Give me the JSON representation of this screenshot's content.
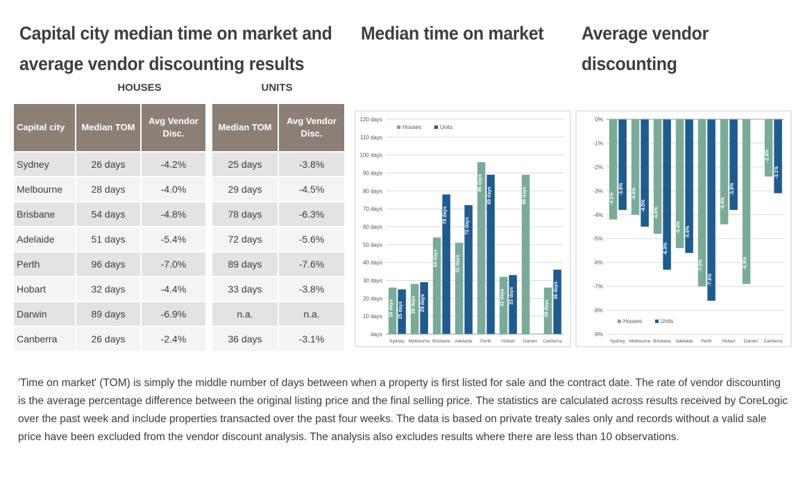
{
  "titles": {
    "main": "Capital city median time on market and average vendor discounting results",
    "tom": "Median time on market",
    "disc": "Average vendor discounting"
  },
  "table": {
    "houses_label": "HOUSES",
    "units_label": "UNITS",
    "headers": {
      "city": "Capital city",
      "houses_tom": "Median TOM",
      "houses_disc": "Avg Vendor Disc.",
      "units_tom": "Median TOM",
      "units_disc": "Avg Vendor Disc."
    },
    "rows": [
      {
        "city": "Sydney",
        "h_tom": "26 days",
        "h_disc": "-4.2%",
        "u_tom": "25 days",
        "u_disc": "-3.8%"
      },
      {
        "city": "Melbourne",
        "h_tom": "28 days",
        "h_disc": "-4.0%",
        "u_tom": "29 days",
        "u_disc": "-4.5%"
      },
      {
        "city": "Brisbane",
        "h_tom": "54 days",
        "h_disc": "-4.8%",
        "u_tom": "78 days",
        "u_disc": "-6.3%"
      },
      {
        "city": "Adelaide",
        "h_tom": "51 days",
        "h_disc": "-5.4%",
        "u_tom": "72 days",
        "u_disc": "-5.6%"
      },
      {
        "city": "Perth",
        "h_tom": "96 days",
        "h_disc": "-7.0%",
        "u_tom": "89 days",
        "u_disc": "-7.6%"
      },
      {
        "city": "Hobart",
        "h_tom": "32 days",
        "h_disc": "-4.4%",
        "u_tom": "33 days",
        "u_disc": "-3.8%"
      },
      {
        "city": "Darwin",
        "h_tom": "89 days",
        "h_disc": "-6.9%",
        "u_tom": "n.a.",
        "u_disc": "n.a."
      },
      {
        "city": "Canberra",
        "h_tom": "26 days",
        "h_disc": "-2.4%",
        "u_tom": "36 days",
        "u_disc": "-3.1%"
      }
    ]
  },
  "colors": {
    "houses": "#7aab98",
    "units": "#1f5b8e",
    "header": "#8c7f76"
  },
  "chart_data": [
    {
      "type": "bar",
      "title": "Median time on market",
      "categories": [
        "Sydney",
        "Melbourne",
        "Brisbane",
        "Adelaide",
        "Perth",
        "Hobart",
        "Darwin",
        "Canberra"
      ],
      "series": [
        {
          "name": "Houses",
          "values": [
            26,
            28,
            54,
            51,
            96,
            32,
            89,
            26
          ],
          "labels": [
            "26 days",
            "28 days",
            "54 days",
            "51 days",
            "96 days",
            "32 days",
            "89 days",
            "26 days"
          ]
        },
        {
          "name": "Units",
          "values": [
            25,
            29,
            78,
            72,
            89,
            33,
            null,
            36
          ],
          "labels": [
            "25 days",
            "29 days",
            "78 days",
            "72 days",
            "89 days",
            "33 days",
            "",
            "36 days"
          ]
        }
      ],
      "ylim": [
        0,
        120
      ],
      "yticks": [
        0,
        10,
        20,
        30,
        40,
        50,
        60,
        70,
        80,
        90,
        100,
        110,
        120
      ],
      "ytick_labels": [
        "days",
        "10 days",
        "20 days",
        "30 days",
        "40 days",
        "50 days",
        "60 days",
        "70 days",
        "80 days",
        "90 days",
        "100 days",
        "110 days",
        "120 days"
      ],
      "grid": true,
      "legend": "top-left"
    },
    {
      "type": "bar",
      "title": "Average vendor discounting",
      "categories": [
        "Sydney",
        "Melbourne",
        "Brisbane",
        "Adelaide",
        "Perth",
        "Hobart",
        "Darwin",
        "Canberra"
      ],
      "series": [
        {
          "name": "Houses",
          "values": [
            -4.2,
            -4.0,
            -4.8,
            -5.4,
            -7.0,
            -4.4,
            -6.9,
            -2.4
          ],
          "labels": [
            "-4.2%",
            "-4.0%",
            "-4.8%",
            "-5.4%",
            "-7.0%",
            "-4.4%",
            "-6.9%",
            "-2.4%"
          ]
        },
        {
          "name": "Units",
          "values": [
            -3.8,
            -4.5,
            -6.3,
            -5.6,
            -7.6,
            -3.8,
            null,
            -3.1
          ],
          "labels": [
            "-3.8%",
            "-4.5%",
            "-6.3%",
            "-5.6%",
            "-7.6%",
            "-3.8%",
            "",
            "-3.1%"
          ]
        }
      ],
      "ylim": [
        -9,
        0
      ],
      "yticks": [
        0,
        -1,
        -2,
        -3,
        -4,
        -5,
        -6,
        -7,
        -8,
        -9
      ],
      "ytick_labels": [
        "0%",
        "-1%",
        "-2%",
        "-3%",
        "-4%",
        "-5%",
        "-6%",
        "-7%",
        "-8%",
        "-9%"
      ],
      "grid": true,
      "legend": "bottom-left"
    }
  ],
  "footnote": "'Time on market' (TOM) is simply the middle number of days between when a property is first listed for sale and the contract date.  The rate of vendor discounting is the average percentage difference between the original listing price and the final selling price.  The statistics are calculated across results received by CoreLogic over the past week and include properties transacted over the past four weeks. The data is based on private treaty sales only and records without a valid sale price have been excluded from the vendor discount analysis. The analysis also excludes results where there are less than 10 observations."
}
